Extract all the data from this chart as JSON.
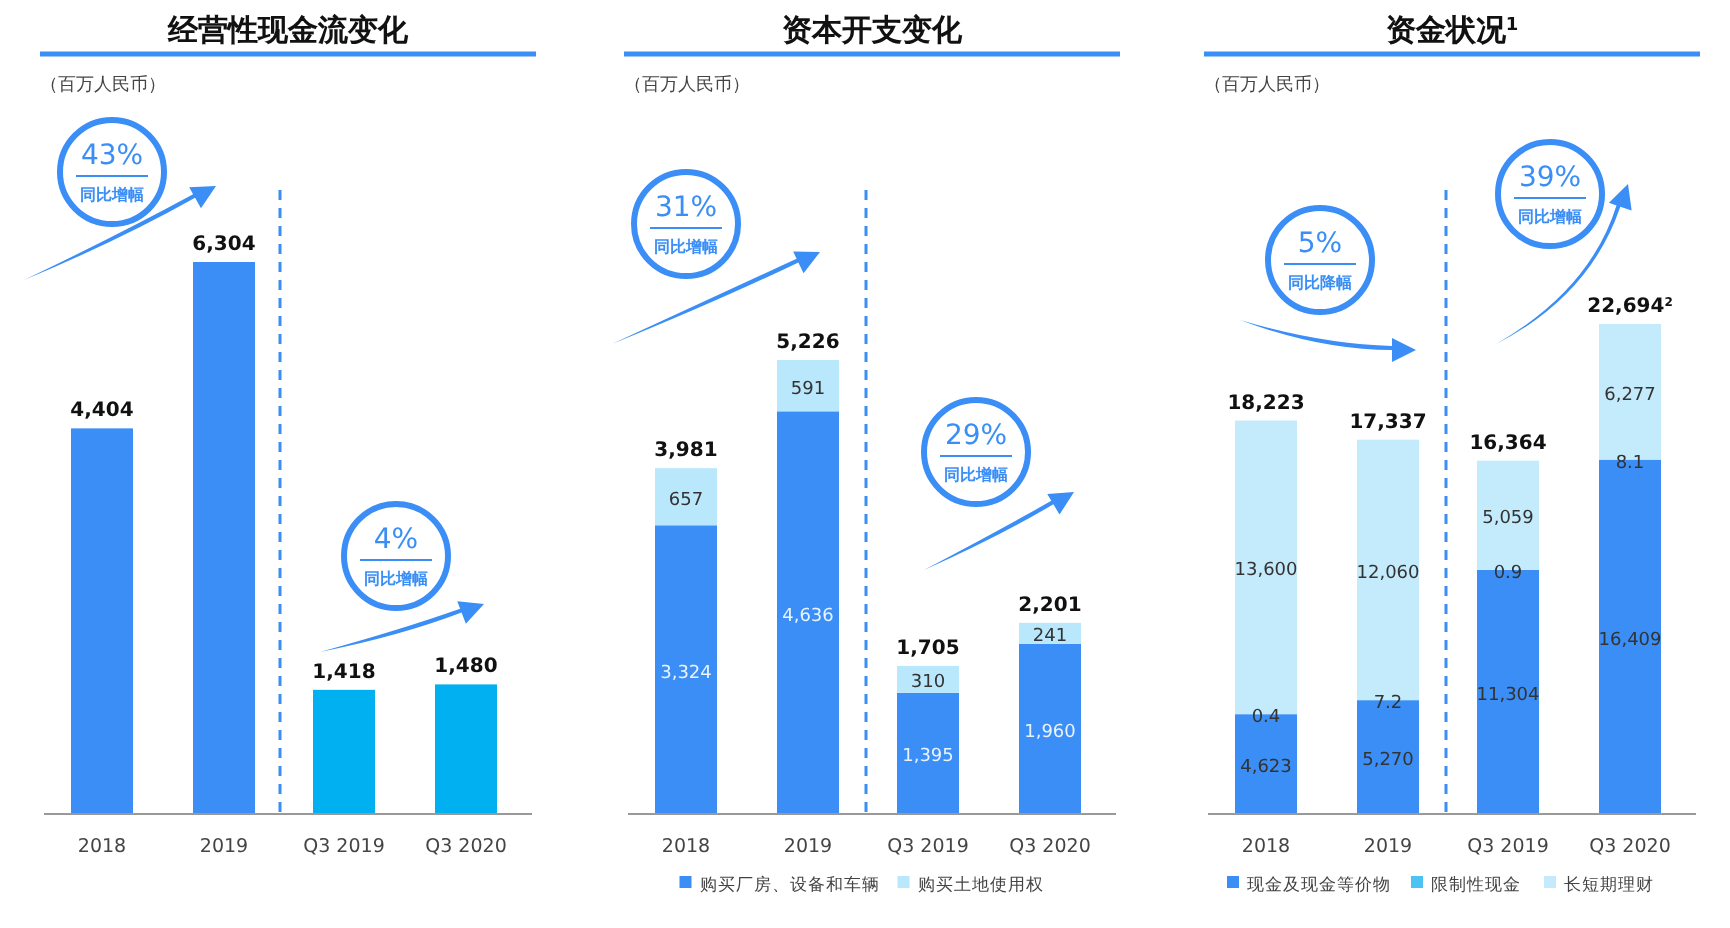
{
  "chart_data": [
    {
      "type": "bar",
      "title": "经营性现金流变化",
      "subtitle": "（百万人民币）",
      "categories": [
        "2018",
        "2019",
        "Q3 2019",
        "Q3 2020"
      ],
      "values": [
        4404,
        6304,
        1418,
        1480
      ],
      "value_labels": [
        "4,404",
        "6,304",
        "1,418",
        "1,480"
      ],
      "colors": [
        "#3a8ef5",
        "#3a8ef5",
        "#00b0f0",
        "#00b0f0"
      ],
      "legend": false,
      "annotations": [
        "43%",
        "同比增幅",
        "4%",
        "同比增幅"
      ]
    },
    {
      "type": "bar",
      "title": "资本开支变化",
      "subtitle": "（百万人民币）",
      "categories": [
        "2018",
        "2019",
        "Q3 2019",
        "Q3 2020"
      ],
      "stacked": true,
      "legend": "bottom",
      "series": [
        {
          "name": "购买厂房、设备和车辆",
          "color": "#3a8ef5",
          "values": [
            3324,
            4636,
            1395,
            1960
          ],
          "value_labels": [
            "3,324",
            "4,636",
            "1,395",
            "1,960"
          ]
        },
        {
          "name": "购买土地使用权",
          "color": "#b9e7fb",
          "values": [
            657,
            591,
            310,
            241
          ],
          "value_labels": [
            "657",
            "591",
            "310",
            "241"
          ]
        }
      ],
      "totals": [
        "3,981",
        "5,226",
        "1,705",
        "2,201"
      ],
      "annotations": [
        "31%",
        "同比增幅",
        "29%",
        "同比增幅"
      ]
    },
    {
      "type": "bar",
      "title": "资金状况$^{1}$",
      "subtitle": "（百万人民币）",
      "categories": [
        "2018",
        "2019",
        "Q3 2019",
        "Q3 2020"
      ],
      "stacked": true,
      "legend": "bottom",
      "series": [
        {
          "name": "现金及现金等价物",
          "color": "#3a8ef5",
          "values": [
            4623,
            5270,
            11304,
            16409
          ],
          "value_labels": [
            "4,623",
            "5,270",
            "11,304",
            "16,409"
          ]
        },
        {
          "name": "限制性现金",
          "color": "#4cc3f3",
          "values": [
            0.4,
            7.2,
            0.9,
            8.1
          ],
          "value_labels": [
            "0.4",
            "7.2",
            "0.9",
            "8.1"
          ]
        },
        {
          "name": "长短期理财",
          "color": "#c4ebfc",
          "values": [
            13600,
            12060,
            5059,
            6277
          ],
          "value_labels": [
            "13,600",
            "12,060",
            "5,059",
            "6,277"
          ]
        }
      ],
      "totals": [
        "18,223",
        "17,337",
        "16,364",
        "22,694$^{2}$"
      ],
      "annotations": [
        "5%",
        "同比降幅",
        "39%",
        "同比增幅"
      ]
    }
  ]
}
